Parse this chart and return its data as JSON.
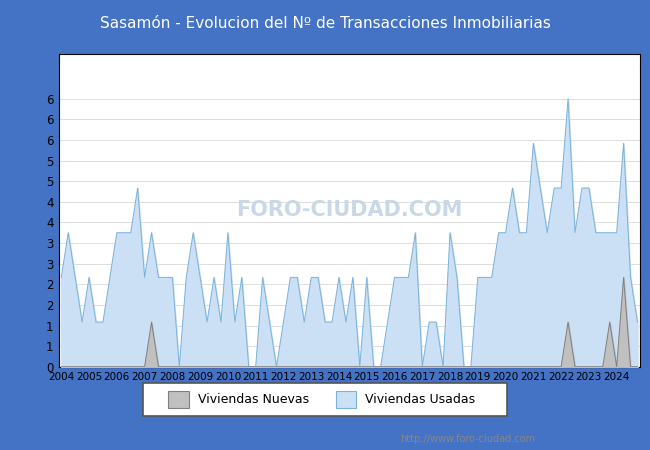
{
  "title": "Sasamón - Evolucion del Nº de Transacciones Inmobiliarias",
  "header_bg": "#4472c4",
  "header_text_color": "#ffffff",
  "header_fontsize": 11,
  "ylim": [
    0,
    7.0
  ],
  "ytick_positions": [
    0,
    0.4615,
    0.9231,
    1.3846,
    1.8462,
    2.3077,
    2.7692,
    3.2308,
    3.6923,
    4.1538,
    4.6154,
    5.0769,
    5.5385,
    6.0
  ],
  "ytick_labels": [
    "0",
    "1",
    "1",
    "2",
    "2",
    "3",
    "3",
    "4",
    "4",
    "5",
    "5",
    "6",
    "6",
    "6"
  ],
  "plot_bg": "#ffffff",
  "grid_color": "#dddddd",
  "border_color": "#000000",
  "url_text": "http://www.foro-ciudad.com",
  "legend_labels": [
    "Viviendas Nuevas",
    "Viviendas Usadas"
  ],
  "color_nuevas_fill": "#c0c0c0",
  "color_nuevas_line": "#808080",
  "color_usadas_fill": "#cce0f5",
  "color_usadas_line": "#7ab3d9",
  "watermark": "FORO-CIUDAD.COM",
  "watermark_color": "#c8d8e8",
  "start_year": 2004,
  "end_year": 2024,
  "quarters_per_year": 4,
  "viviendas_nuevas": [
    0,
    0,
    0,
    0,
    0,
    0,
    0,
    0,
    0,
    0,
    0,
    0,
    0,
    1,
    0,
    0,
    0,
    0,
    0,
    0,
    0,
    0,
    0,
    0,
    0,
    0,
    0,
    0,
    0,
    0,
    0,
    0,
    0,
    0,
    0,
    0,
    0,
    0,
    0,
    0,
    0,
    0,
    0,
    0,
    0,
    0,
    0,
    0,
    0,
    0,
    0,
    0,
    0,
    0,
    0,
    0,
    0,
    0,
    0,
    0,
    0,
    0,
    0,
    0,
    0,
    0,
    0,
    0,
    0,
    0,
    0,
    0,
    0,
    1,
    0,
    0,
    0,
    0,
    0,
    1,
    0,
    2,
    0,
    0
  ],
  "viviendas_usadas": [
    2,
    3,
    2,
    1,
    2,
    1,
    1,
    2,
    3,
    3,
    3,
    4,
    2,
    3,
    2,
    2,
    2,
    0,
    2,
    3,
    2,
    1,
    2,
    1,
    3,
    1,
    2,
    0,
    0,
    2,
    1,
    0,
    1,
    2,
    2,
    1,
    2,
    2,
    1,
    1,
    2,
    1,
    2,
    0,
    2,
    0,
    0,
    1,
    2,
    2,
    2,
    3,
    0,
    1,
    1,
    0,
    3,
    2,
    0,
    0,
    2,
    2,
    2,
    3,
    3,
    4,
    3,
    3,
    5,
    4,
    3,
    4,
    4,
    6,
    3,
    4,
    4,
    3,
    3,
    3,
    3,
    5,
    2,
    1
  ]
}
